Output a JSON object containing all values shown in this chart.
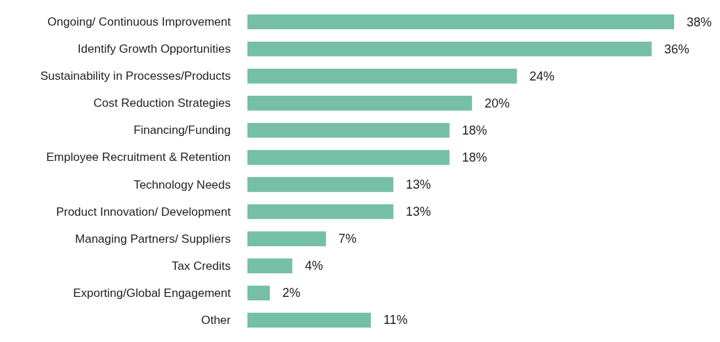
{
  "chart_data": {
    "type": "bar",
    "orientation": "horizontal",
    "categories": [
      "Ongoing/ Continuous Improvement",
      "Identify Growth Opportunities",
      "Sustainability in Processes/Products",
      "Cost Reduction Strategies",
      "Financing/Funding",
      "Employee Recruitment & Retention",
      "Technology Needs",
      "Product Innovation/ Development",
      "Managing Partners/ Suppliers",
      "Tax Credits",
      "Exporting/Global Engagement",
      "Other"
    ],
    "values": [
      38,
      36,
      24,
      20,
      18,
      18,
      13,
      13,
      7,
      4,
      2,
      11
    ],
    "value_labels": [
      "38%",
      "36%",
      "24%",
      "20%",
      "18%",
      "18%",
      "13%",
      "13%",
      "7%",
      "4%",
      "2%",
      "11%"
    ],
    "color": "#76bfa7"
  }
}
